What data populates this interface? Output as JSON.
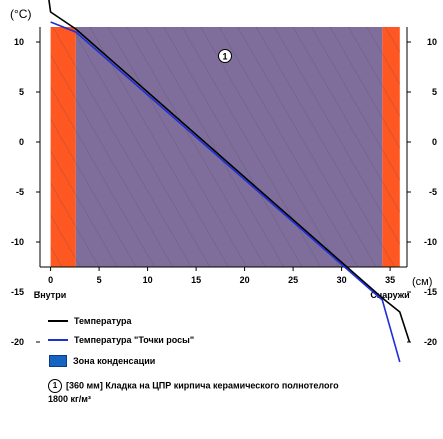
{
  "chart_data": {
    "type": "line",
    "ylabel": "(°C)",
    "xlabel": "(см)",
    "x_ticks": [
      0,
      5,
      10,
      15,
      20,
      25,
      30,
      35
    ],
    "y_ticks": [
      20,
      15,
      10,
      5,
      0,
      -5,
      -10,
      -15,
      -20
    ],
    "xlim": [
      -1,
      37
    ],
    "ylim": [
      -25,
      22
    ],
    "inside_label": "Внутри",
    "outside_label": "Снаружи",
    "layers": [
      {
        "x0": 0,
        "x1": 2.6,
        "color": "#ff5722",
        "kind": "surface"
      },
      {
        "x0": 2.6,
        "x1": 34.2,
        "color": "#7f6e9c",
        "kind": "masonry",
        "label": "1"
      },
      {
        "x0": 34.2,
        "x1": 36,
        "color": "#ff5722",
        "kind": "surface"
      }
    ],
    "series": [
      {
        "name": "Температура",
        "color": "#000000",
        "points": [
          [
            -1,
            20
          ],
          [
            0,
            13
          ],
          [
            2.6,
            11.3
          ],
          [
            34.2,
            -15.6
          ],
          [
            36,
            -17
          ],
          [
            37,
            -20
          ]
        ]
      },
      {
        "name": "Температура \"Точки росы\"",
        "color": "#1f2fd8",
        "points": [
          [
            0,
            12
          ],
          [
            2.6,
            11
          ],
          [
            34.2,
            -15.8
          ],
          [
            36,
            -22
          ]
        ]
      }
    ],
    "condensation_zone": {
      "name": "Зона конденсации",
      "color": "#1565c0"
    },
    "note": {
      "number": "1",
      "text": "[360 мм] Кладка на ЦПР кирпича керамического полнотелого 1800 кг/м³"
    }
  }
}
